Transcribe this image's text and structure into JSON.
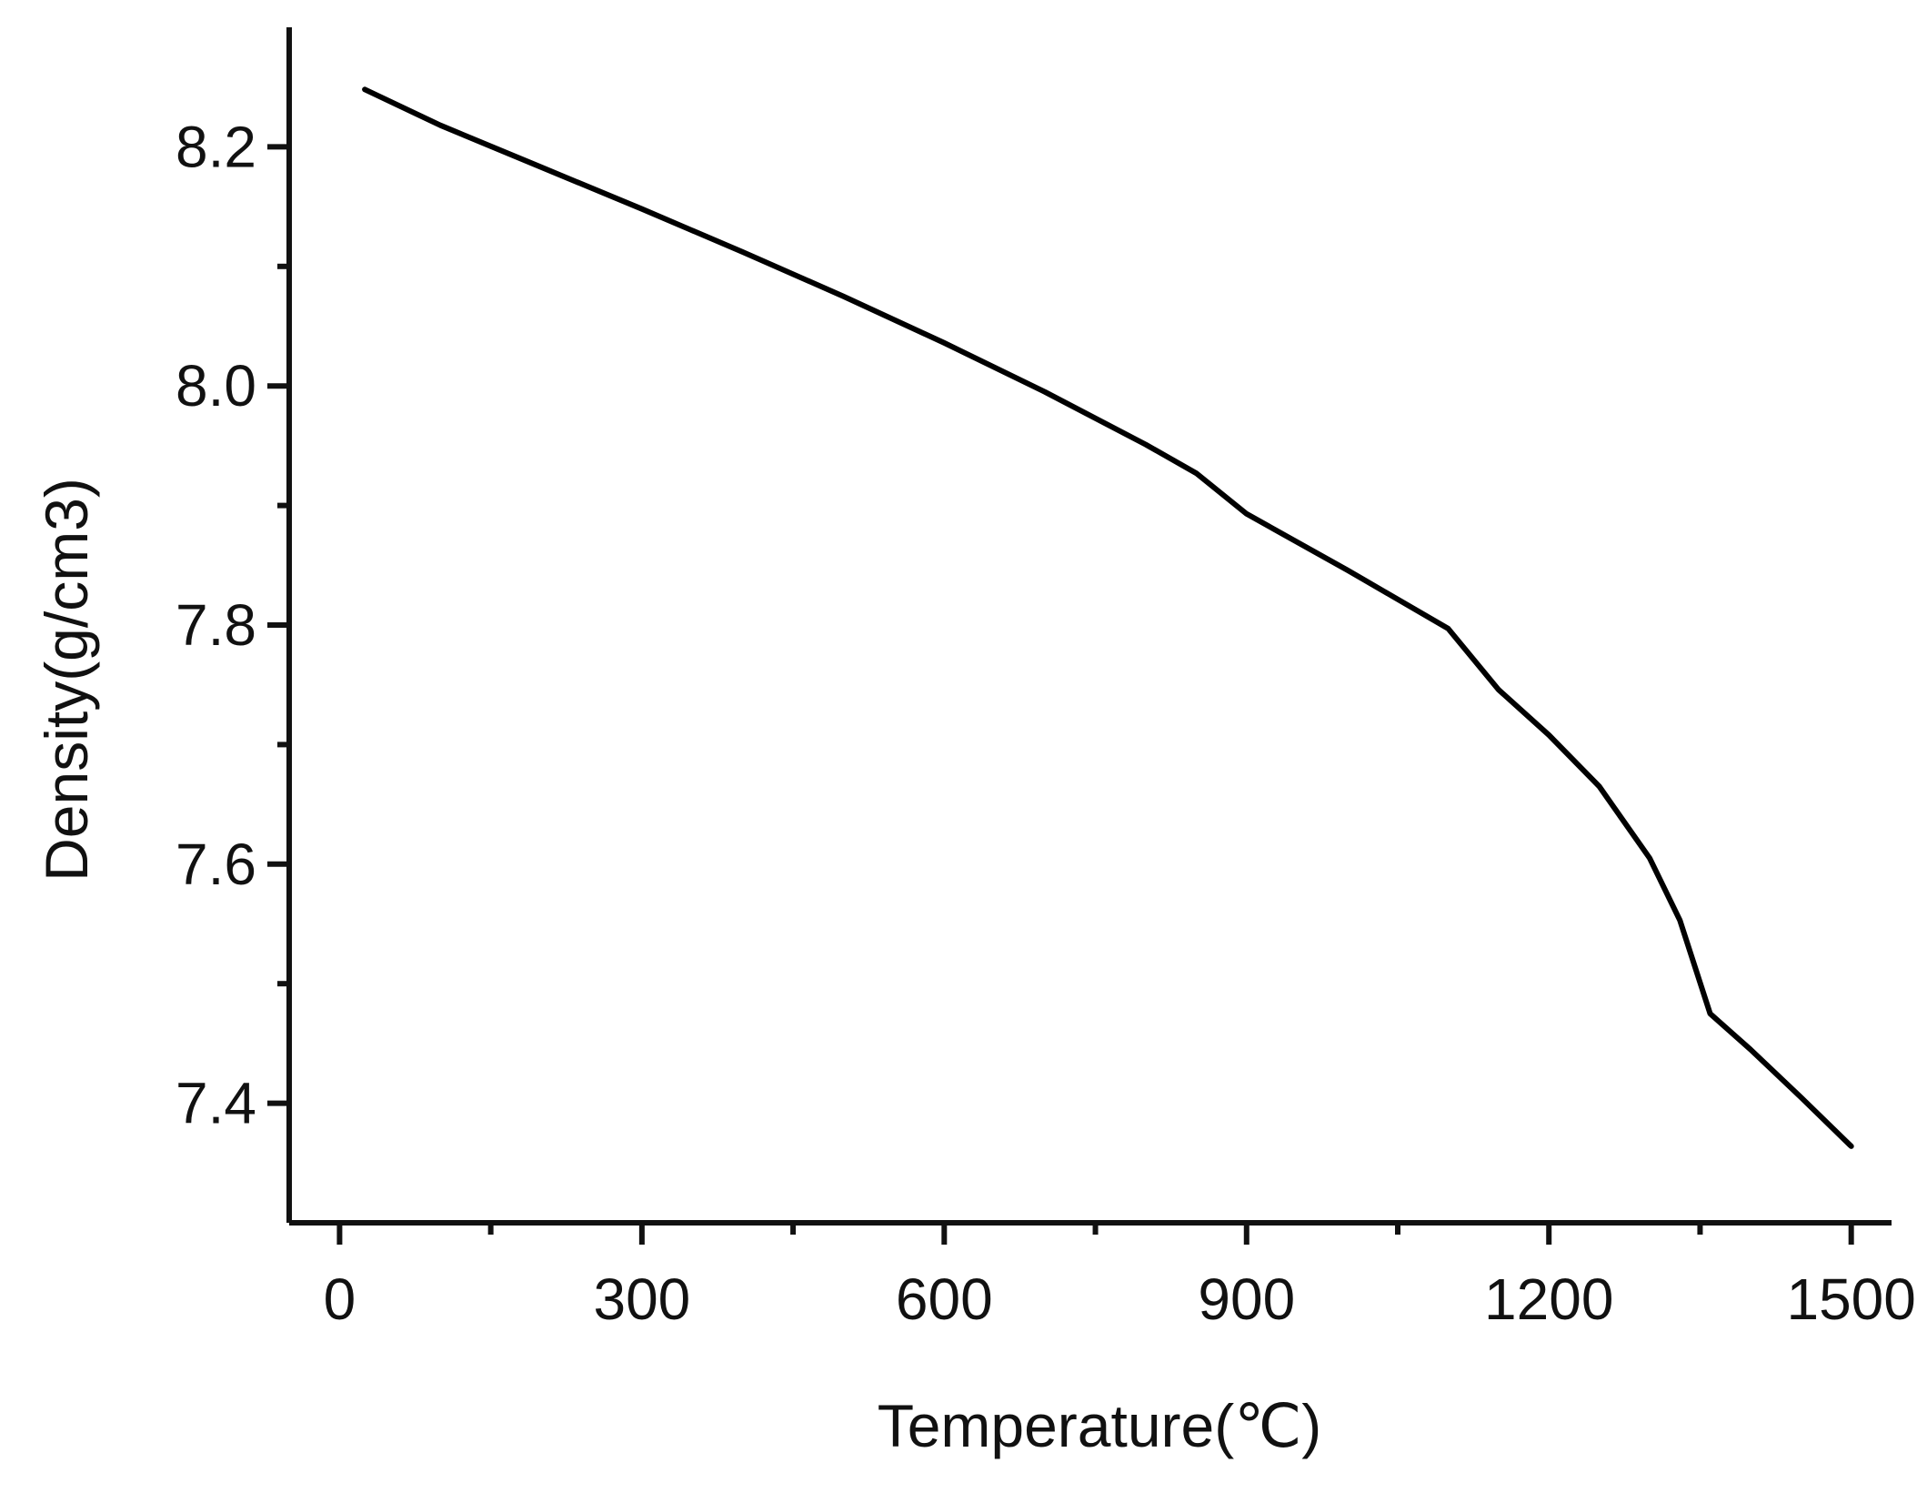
{
  "chart_data": {
    "type": "line",
    "title": "",
    "xlabel": "Temperature(℃)",
    "ylabel": "Density(g/cm3)",
    "xlim": [
      -50,
      1540
    ],
    "ylim": [
      7.3,
      8.3
    ],
    "x_ticks": [
      0,
      300,
      600,
      900,
      1200,
      1500
    ],
    "x_tick_labels": [
      "0",
      "300",
      "600",
      "900",
      "1200",
      "1500"
    ],
    "x_minor_ticks": [
      150,
      450,
      750,
      1050,
      1350
    ],
    "y_ticks": [
      7.4,
      7.6,
      7.8,
      8.0,
      8.2
    ],
    "y_tick_labels": [
      "7.4",
      "7.6",
      "7.8",
      "8.0",
      "8.2"
    ],
    "y_minor_ticks": [
      7.5,
      7.7,
      7.9,
      8.1
    ],
    "grid": false,
    "series": [
      {
        "color": "#000000",
        "x": [
          25,
          100,
          200,
          300,
          400,
          500,
          600,
          700,
          800,
          850,
          900,
          1000,
          1100,
          1150,
          1200,
          1250,
          1300,
          1330,
          1360,
          1400,
          1450,
          1500
        ],
        "y": [
          8.248,
          8.218,
          8.183,
          8.148,
          8.112,
          8.075,
          8.036,
          7.995,
          7.951,
          7.927,
          7.893,
          7.846,
          7.797,
          7.746,
          7.708,
          7.665,
          7.605,
          7.553,
          7.475,
          7.445,
          7.405,
          7.364
        ]
      }
    ]
  }
}
